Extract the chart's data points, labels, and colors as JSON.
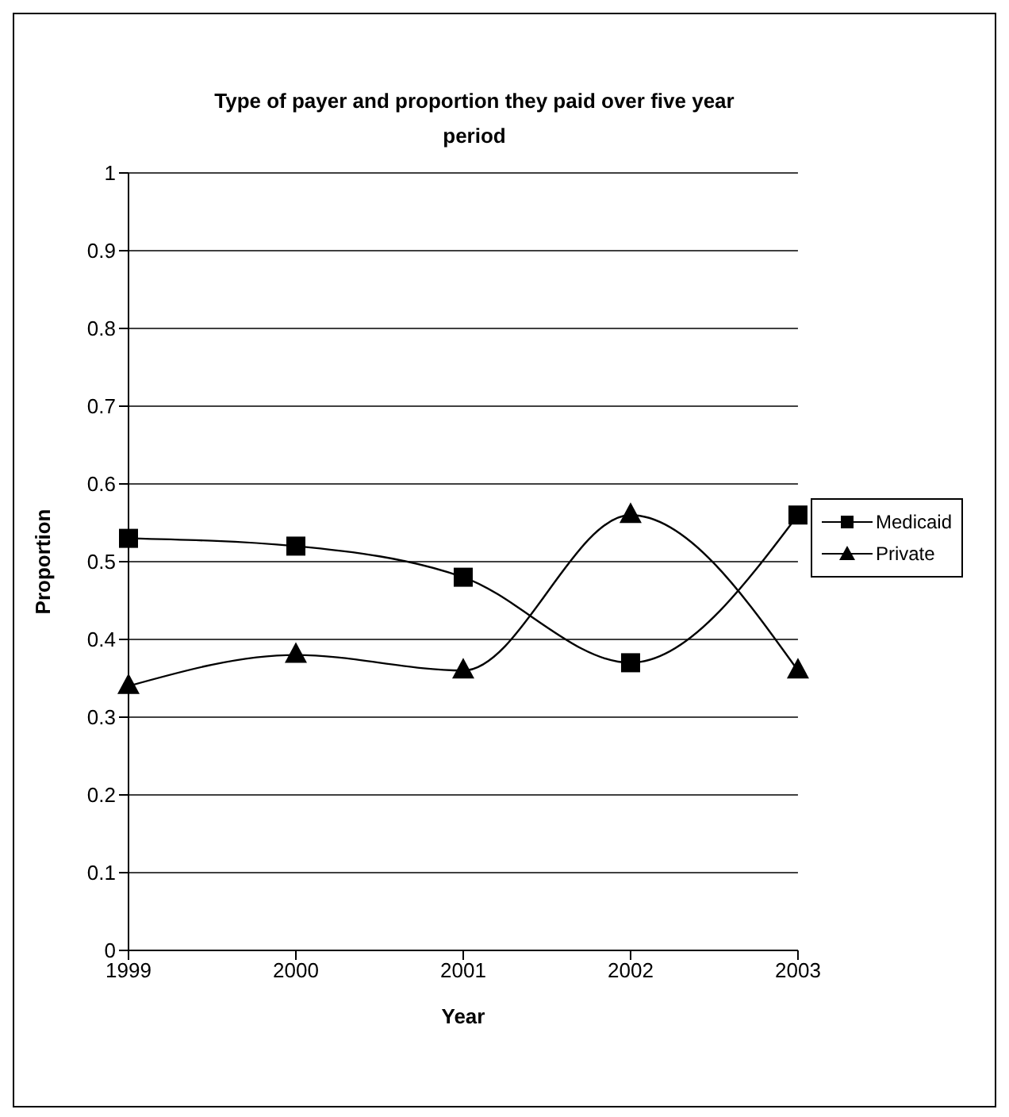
{
  "chart_data": {
    "type": "line",
    "title": "Type of payer and proportion they paid over five year period",
    "xlabel": "Year",
    "ylabel": "Proportion",
    "categories": [
      "1999",
      "2000",
      "2001",
      "2002",
      "2003"
    ],
    "series": [
      {
        "name": "Medicaid",
        "color": "#000000",
        "marker": "square",
        "values": [
          0.53,
          0.52,
          0.48,
          0.37,
          0.56
        ]
      },
      {
        "name": "Private",
        "color": "#000000",
        "marker": "triangle",
        "values": [
          0.34,
          0.38,
          0.36,
          0.56,
          0.36
        ]
      }
    ],
    "ylim": [
      0,
      1
    ],
    "yticks": [
      0,
      0.1,
      0.2,
      0.3,
      0.4,
      0.5,
      0.6,
      0.7,
      0.8,
      0.9,
      1
    ],
    "grid": "y",
    "legend": "right",
    "line_style": "solid"
  }
}
